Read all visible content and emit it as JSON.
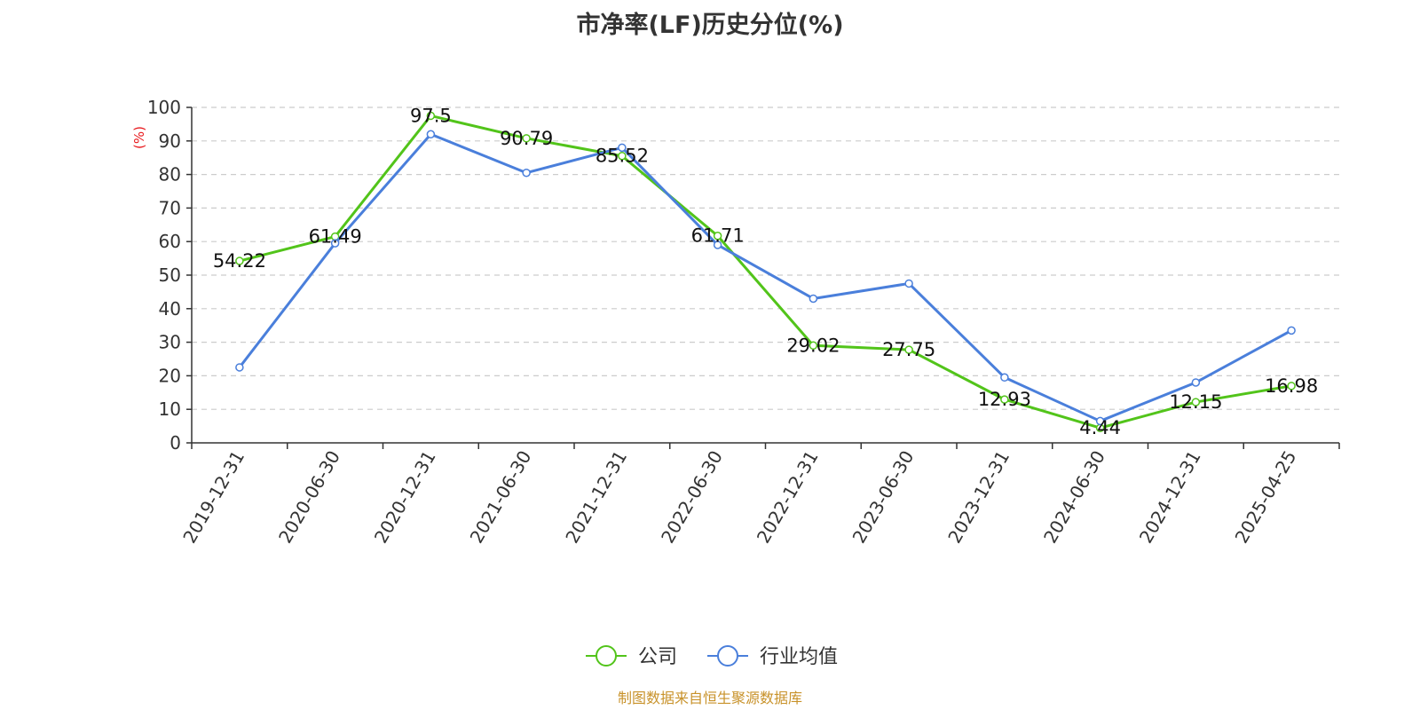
{
  "title": "市净率(LF)历史分位(%)",
  "footer": "制图数据来自恒生聚源数据库",
  "chart_data": {
    "type": "line",
    "title": "市净率(LF)历史分位(%)",
    "ylabel": "(%)",
    "ylim": [
      0,
      100
    ],
    "yticks": [
      0,
      10,
      20,
      30,
      40,
      50,
      60,
      70,
      80,
      90,
      100
    ],
    "grid": true,
    "legend_position": "bottom-center",
    "categories": [
      "2019-12-31",
      "2020-06-30",
      "2020-12-31",
      "2021-06-30",
      "2021-12-31",
      "2022-06-30",
      "2022-12-31",
      "2023-06-30",
      "2023-12-31",
      "2024-06-30",
      "2024-12-31",
      "2025-04-25"
    ],
    "series": [
      {
        "name": "公司",
        "color": "#52c41a",
        "values": [
          54.22,
          61.49,
          97.5,
          90.79,
          85.52,
          61.71,
          29.02,
          27.75,
          12.93,
          4.44,
          12.15,
          16.98
        ],
        "labels": [
          "54.22",
          "61.49",
          "97.5",
          "90.79",
          "85.52",
          "61.71",
          "29.02",
          "27.75",
          "12.93",
          "4.44",
          "12.15",
          "16.98"
        ]
      },
      {
        "name": "行业均值",
        "color": "#4a7fdb",
        "values": [
          22.5,
          59.5,
          92.0,
          80.5,
          88.0,
          59.0,
          43.0,
          47.5,
          19.5,
          6.5,
          18.0,
          33.5
        ]
      }
    ]
  }
}
